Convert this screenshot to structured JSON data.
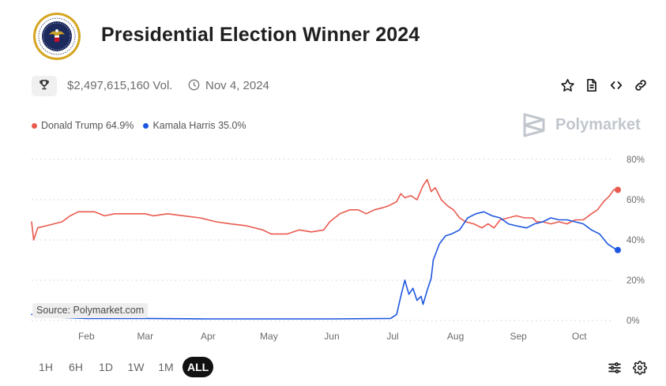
{
  "header": {
    "title": "Presidential Election Winner 2024",
    "volume": "$2,497,615,160 Vol.",
    "date": "Nov 4, 2024"
  },
  "icons": {
    "seal": "presidential-seal",
    "trophy": "trophy-icon",
    "clock": "clock-icon",
    "star": "star-icon",
    "document": "document-icon",
    "embed": "code-icon",
    "link": "link-icon",
    "filters": "sliders-icon",
    "settings": "gear-icon"
  },
  "legend": [
    {
      "label": "Donald Trump 64.9%",
      "color": "#ea5a4f"
    },
    {
      "label": "Kamala Harris 35.0%",
      "color": "#1e57e0"
    }
  ],
  "brand": "Polymarket",
  "source": "Source: Polymarket.com",
  "ranges": [
    "1H",
    "6H",
    "1D",
    "1W",
    "1M",
    "ALL"
  ],
  "active_range": "ALL",
  "chart_data": {
    "type": "line",
    "x_ticks": [
      "Feb",
      "Mar",
      "Apr",
      "May",
      "Jun",
      "Jul",
      "Aug",
      "Sep",
      "Oct"
    ],
    "y_ticks": [
      "0%",
      "20%",
      "40%",
      "60%",
      "80%"
    ],
    "ylim": [
      0,
      80
    ],
    "xlim": [
      "2024-01-05",
      "2024-10-20"
    ],
    "grid": true,
    "series": [
      {
        "name": "Donald Trump",
        "color": "#ea5a4f",
        "points": [
          [
            "2024-01-05",
            49
          ],
          [
            "2024-01-06",
            40
          ],
          [
            "2024-01-08",
            46
          ],
          [
            "2024-01-12",
            47
          ],
          [
            "2024-01-16",
            48
          ],
          [
            "2024-01-20",
            49
          ],
          [
            "2024-01-24",
            52
          ],
          [
            "2024-01-28",
            54
          ],
          [
            "2024-02-05",
            54
          ],
          [
            "2024-02-10",
            52
          ],
          [
            "2024-02-15",
            53
          ],
          [
            "2024-02-22",
            53
          ],
          [
            "2024-03-01",
            53
          ],
          [
            "2024-03-05",
            52
          ],
          [
            "2024-03-12",
            53
          ],
          [
            "2024-03-20",
            52
          ],
          [
            "2024-03-28",
            51
          ],
          [
            "2024-04-05",
            49
          ],
          [
            "2024-04-12",
            48
          ],
          [
            "2024-04-20",
            47
          ],
          [
            "2024-04-28",
            45
          ],
          [
            "2024-05-02",
            43
          ],
          [
            "2024-05-10",
            43
          ],
          [
            "2024-05-16",
            45
          ],
          [
            "2024-05-22",
            44
          ],
          [
            "2024-05-28",
            45
          ],
          [
            "2024-05-31",
            49
          ],
          [
            "2024-06-05",
            53
          ],
          [
            "2024-06-10",
            55
          ],
          [
            "2024-06-14",
            55
          ],
          [
            "2024-06-18",
            53
          ],
          [
            "2024-06-22",
            55
          ],
          [
            "2024-06-26",
            56
          ],
          [
            "2024-06-29",
            57
          ],
          [
            "2024-07-03",
            59
          ],
          [
            "2024-07-05",
            63
          ],
          [
            "2024-07-07",
            61
          ],
          [
            "2024-07-10",
            62
          ],
          [
            "2024-07-13",
            60
          ],
          [
            "2024-07-16",
            67
          ],
          [
            "2024-07-18",
            70
          ],
          [
            "2024-07-20",
            64
          ],
          [
            "2024-07-22",
            66
          ],
          [
            "2024-07-25",
            60
          ],
          [
            "2024-07-28",
            57
          ],
          [
            "2024-07-31",
            55
          ],
          [
            "2024-08-03",
            51
          ],
          [
            "2024-08-06",
            49
          ],
          [
            "2024-08-10",
            48
          ],
          [
            "2024-08-14",
            46
          ],
          [
            "2024-08-17",
            48
          ],
          [
            "2024-08-20",
            46
          ],
          [
            "2024-08-23",
            50
          ],
          [
            "2024-08-27",
            51
          ],
          [
            "2024-08-31",
            52
          ],
          [
            "2024-09-04",
            51
          ],
          [
            "2024-09-08",
            51
          ],
          [
            "2024-09-10",
            49
          ],
          [
            "2024-09-13",
            49
          ],
          [
            "2024-09-17",
            48
          ],
          [
            "2024-09-21",
            49
          ],
          [
            "2024-09-25",
            48
          ],
          [
            "2024-09-29",
            50
          ],
          [
            "2024-10-03",
            50
          ],
          [
            "2024-10-07",
            53
          ],
          [
            "2024-10-10",
            55
          ],
          [
            "2024-10-13",
            59
          ],
          [
            "2024-10-16",
            62
          ],
          [
            "2024-10-18",
            65
          ],
          [
            "2024-10-20",
            64.9
          ]
        ]
      },
      {
        "name": "Kamala Harris",
        "color": "#1e57e0",
        "points": [
          [
            "2024-01-05",
            3
          ],
          [
            "2024-01-10",
            2
          ],
          [
            "2024-01-20",
            1.5
          ],
          [
            "2024-02-01",
            1
          ],
          [
            "2024-03-01",
            1
          ],
          [
            "2024-04-01",
            0.8
          ],
          [
            "2024-05-01",
            0.8
          ],
          [
            "2024-06-01",
            0.8
          ],
          [
            "2024-06-30",
            1
          ],
          [
            "2024-07-03",
            3
          ],
          [
            "2024-07-05",
            12
          ],
          [
            "2024-07-07",
            20
          ],
          [
            "2024-07-09",
            13
          ],
          [
            "2024-07-11",
            16
          ],
          [
            "2024-07-13",
            10
          ],
          [
            "2024-07-15",
            12
          ],
          [
            "2024-07-16",
            8
          ],
          [
            "2024-07-18",
            15
          ],
          [
            "2024-07-20",
            21
          ],
          [
            "2024-07-21",
            30
          ],
          [
            "2024-07-24",
            38
          ],
          [
            "2024-07-27",
            42
          ],
          [
            "2024-07-30",
            43
          ],
          [
            "2024-08-03",
            45
          ],
          [
            "2024-08-07",
            51
          ],
          [
            "2024-08-11",
            53
          ],
          [
            "2024-08-15",
            54
          ],
          [
            "2024-08-19",
            52
          ],
          [
            "2024-08-23",
            51
          ],
          [
            "2024-08-27",
            48
          ],
          [
            "2024-08-31",
            47
          ],
          [
            "2024-09-05",
            46
          ],
          [
            "2024-09-09",
            48
          ],
          [
            "2024-09-13",
            49
          ],
          [
            "2024-09-17",
            51
          ],
          [
            "2024-09-21",
            50
          ],
          [
            "2024-09-25",
            50
          ],
          [
            "2024-09-29",
            49
          ],
          [
            "2024-10-03",
            48
          ],
          [
            "2024-10-07",
            45
          ],
          [
            "2024-10-11",
            43
          ],
          [
            "2024-10-15",
            38
          ],
          [
            "2024-10-18",
            36
          ],
          [
            "2024-10-20",
            35.0
          ]
        ]
      }
    ]
  }
}
